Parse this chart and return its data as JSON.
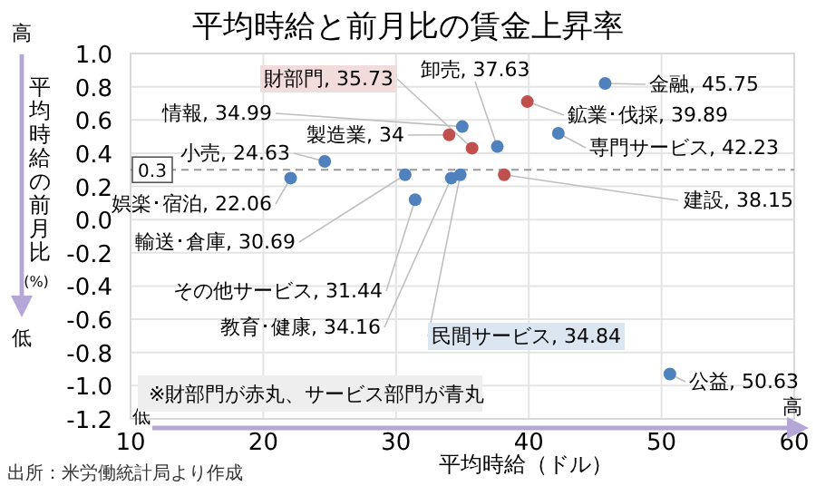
{
  "chart_data": {
    "type": "scatter",
    "title": "平均時給と前月比の賃金上昇率",
    "xlabel": "平均時給（ドル）",
    "ylabel": "平均時給の前月比",
    "annotations": [
      "高",
      "低",
      "(%)",
      "低",
      "高",
      "※財部門が赤丸、サービス部門が青丸",
      "出所：米労働統計局より作成",
      {
        "text": "財部門, 35.73",
        "x": 35.73,
        "y": 0.43
      },
      {
        "text": "製造業, 34",
        "x": 34,
        "y": 0.51
      },
      {
        "text": "建設, 38.15",
        "x": 38.15,
        "y": 0.27
      },
      {
        "text": "鉱業･伐採, 39.89",
        "x": 39.89,
        "y": 0.71
      },
      {
        "text": "金融, 45.75",
        "x": 45.75,
        "y": 0.82
      },
      {
        "text": "専門サービス, 42.23",
        "x": 42.23,
        "y": 0.52
      },
      {
        "text": "卸売, 37.63",
        "x": 37.63,
        "y": 0.44
      },
      {
        "text": "情報, 34.99",
        "x": 34.99,
        "y": 0.56
      },
      {
        "text": "民間サービス, 34.84",
        "x": 34.84,
        "y": 0.27
      },
      {
        "text": "教育･健康, 34.16",
        "x": 34.16,
        "y": 0.25
      },
      {
        "text": "小売, 24.63",
        "x": 24.63,
        "y": 0.35
      },
      {
        "text": "娯楽･宿泊, 22.06",
        "x": 22.06,
        "y": 0.25
      },
      {
        "text": "輸送･倉庫, 30.69",
        "x": 30.69,
        "y": 0.27
      },
      {
        "text": "その他サービス, 31.44",
        "x": 31.44,
        "y": 0.12
      },
      {
        "text": "公益, 50.63",
        "x": 50.63,
        "y": -0.93
      }
    ],
    "xlim": [
      10,
      60
    ],
    "xticks": [
      10,
      20,
      30,
      40,
      50,
      60
    ],
    "ylim": [
      -1.2,
      1.0
    ],
    "yticks": [
      {
        "value": 1.0,
        "label": "1.0"
      },
      {
        "value": 0.8,
        "label": "0.8"
      },
      {
        "value": 0.6,
        "label": "0.6"
      },
      {
        "value": 0.4,
        "label": "0.4"
      },
      {
        "value": 0.2,
        "label": "0.2"
      },
      {
        "value": 0,
        "label": "0.0"
      },
      {
        "value": -0.2,
        "label": "-0.2"
      },
      {
        "value": -0.4,
        "label": "-0.4"
      },
      {
        "value": -0.6,
        "label": "-0.6"
      },
      {
        "value": -0.8,
        "label": "-0.8"
      },
      {
        "value": -1.0,
        "label": "-1.0"
      },
      {
        "value": -1.2,
        "label": "-1.2"
      }
    ],
    "grid": true,
    "marker": "circle",
    "ref_lines": [
      {
        "axis": "y",
        "value": 0.3,
        "label": "0.3",
        "line_style": "dashed",
        "color": "#999999"
      }
    ],
    "series": [
      {
        "color": "#c0504d",
        "x": [
          35.73,
          34,
          38.15,
          39.89
        ],
        "values": [
          0.43,
          0.51,
          0.27,
          0.71
        ]
      },
      {
        "color": "#4f81bd",
        "x": [
          45.75,
          42.23,
          37.63,
          34.99,
          34.84,
          34.16,
          24.63,
          22.06,
          30.69,
          31.44,
          50.63
        ],
        "values": [
          0.82,
          0.52,
          0.44,
          0.56,
          0.27,
          0.25,
          0.35,
          0.25,
          0.27,
          0.12,
          -0.93
        ]
      }
    ]
  }
}
